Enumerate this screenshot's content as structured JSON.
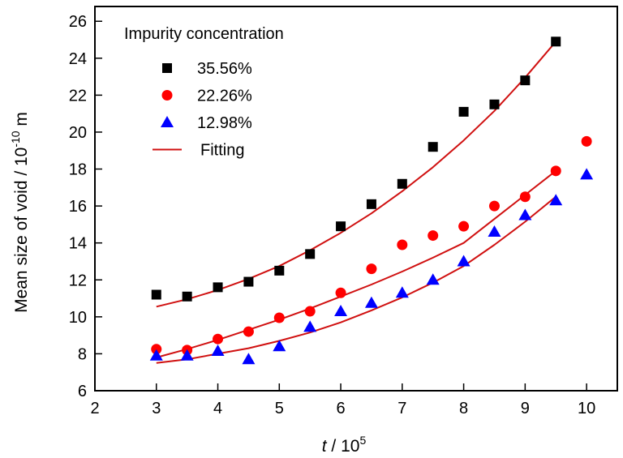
{
  "chart_data": {
    "type": "scatter",
    "title": "",
    "xlabel": {
      "italic": "t",
      "rest": " / 10",
      "sup": "5"
    },
    "ylabel": {
      "main": "Mean size of void / 10",
      "sup": "-10",
      "unit": " m"
    },
    "xlim": [
      2,
      10.5
    ],
    "ylim": [
      6,
      26.8
    ],
    "xticks": [
      2,
      3,
      4,
      5,
      6,
      7,
      8,
      9,
      10
    ],
    "yticks": [
      6,
      8,
      10,
      12,
      14,
      16,
      18,
      20,
      22,
      24,
      26
    ],
    "grid": false,
    "legend": {
      "title": "Impurity concentration",
      "placement": "top-left",
      "entries": [
        {
          "label": "35.56%",
          "marker": "square",
          "color": "#000000"
        },
        {
          "label": "22.26%",
          "marker": "circle",
          "color": "#ff0000"
        },
        {
          "label": "12.98%",
          "marker": "triangle",
          "color": "#0000ff"
        },
        {
          "label": "Fitting",
          "marker": "line",
          "color": "#d01010"
        }
      ]
    },
    "series": [
      {
        "name": "35.56%",
        "marker": "square",
        "color": "#000000",
        "x": [
          3,
          3.5,
          4,
          4.5,
          5,
          5.5,
          6,
          6.5,
          7,
          7.5,
          8,
          8.5,
          9,
          9.5
        ],
        "y": [
          11.2,
          11.1,
          11.6,
          11.9,
          12.5,
          13.4,
          14.9,
          16.1,
          17.2,
          19.2,
          21.1,
          21.5,
          22.8,
          24.9
        ]
      },
      {
        "name": "22.26%",
        "marker": "circle",
        "color": "#ff0000",
        "x": [
          3,
          3.5,
          4,
          4.5,
          5,
          5.5,
          6,
          6.5,
          7,
          7.5,
          8,
          8.5,
          9,
          9.5,
          10
        ],
        "y": [
          8.25,
          8.2,
          8.8,
          9.2,
          9.95,
          10.3,
          11.3,
          12.6,
          13.9,
          14.4,
          14.9,
          16.0,
          16.5,
          17.9,
          19.5
        ]
      },
      {
        "name": "12.98%",
        "marker": "triangle",
        "color": "#0000ff",
        "x": [
          3,
          3.5,
          4,
          4.5,
          5,
          5.5,
          6,
          6.5,
          7,
          7.5,
          8,
          8.5,
          9,
          9.5,
          10
        ],
        "y": [
          7.9,
          7.9,
          8.15,
          7.7,
          8.4,
          9.45,
          10.3,
          10.75,
          11.3,
          12.0,
          13.0,
          14.6,
          15.5,
          16.3,
          17.7
        ]
      }
    ],
    "fits": [
      {
        "name": "Fitting 35.56%",
        "color": "#d01010",
        "x": [
          3,
          3.5,
          4,
          4.5,
          5,
          5.5,
          6,
          6.5,
          7,
          7.5,
          8,
          8.5,
          9,
          9.5
        ],
        "y": [
          10.55,
          10.95,
          11.45,
          12.05,
          12.75,
          13.6,
          14.55,
          15.6,
          16.8,
          18.1,
          19.55,
          21.15,
          22.95,
          24.9
        ]
      },
      {
        "name": "Fitting 22.26%",
        "color": "#d01010",
        "x": [
          3,
          3.5,
          4,
          4.5,
          5,
          5.5,
          6,
          6.5,
          7,
          7.5,
          8,
          8.5,
          9,
          9.5
        ],
        "y": [
          7.8,
          8.25,
          8.75,
          9.3,
          9.85,
          10.45,
          11.1,
          11.75,
          12.45,
          13.2,
          14.0,
          15.3,
          16.6,
          17.9
        ]
      },
      {
        "name": "Fitting 12.98%",
        "color": "#d01010",
        "x": [
          3,
          3.5,
          4,
          4.5,
          5,
          5.5,
          6,
          6.5,
          7,
          7.5,
          8,
          8.5,
          9,
          9.5
        ],
        "y": [
          7.5,
          7.7,
          8.0,
          8.3,
          8.7,
          9.15,
          9.7,
          10.35,
          11.05,
          11.85,
          12.75,
          13.9,
          15.15,
          16.5
        ]
      }
    ]
  }
}
